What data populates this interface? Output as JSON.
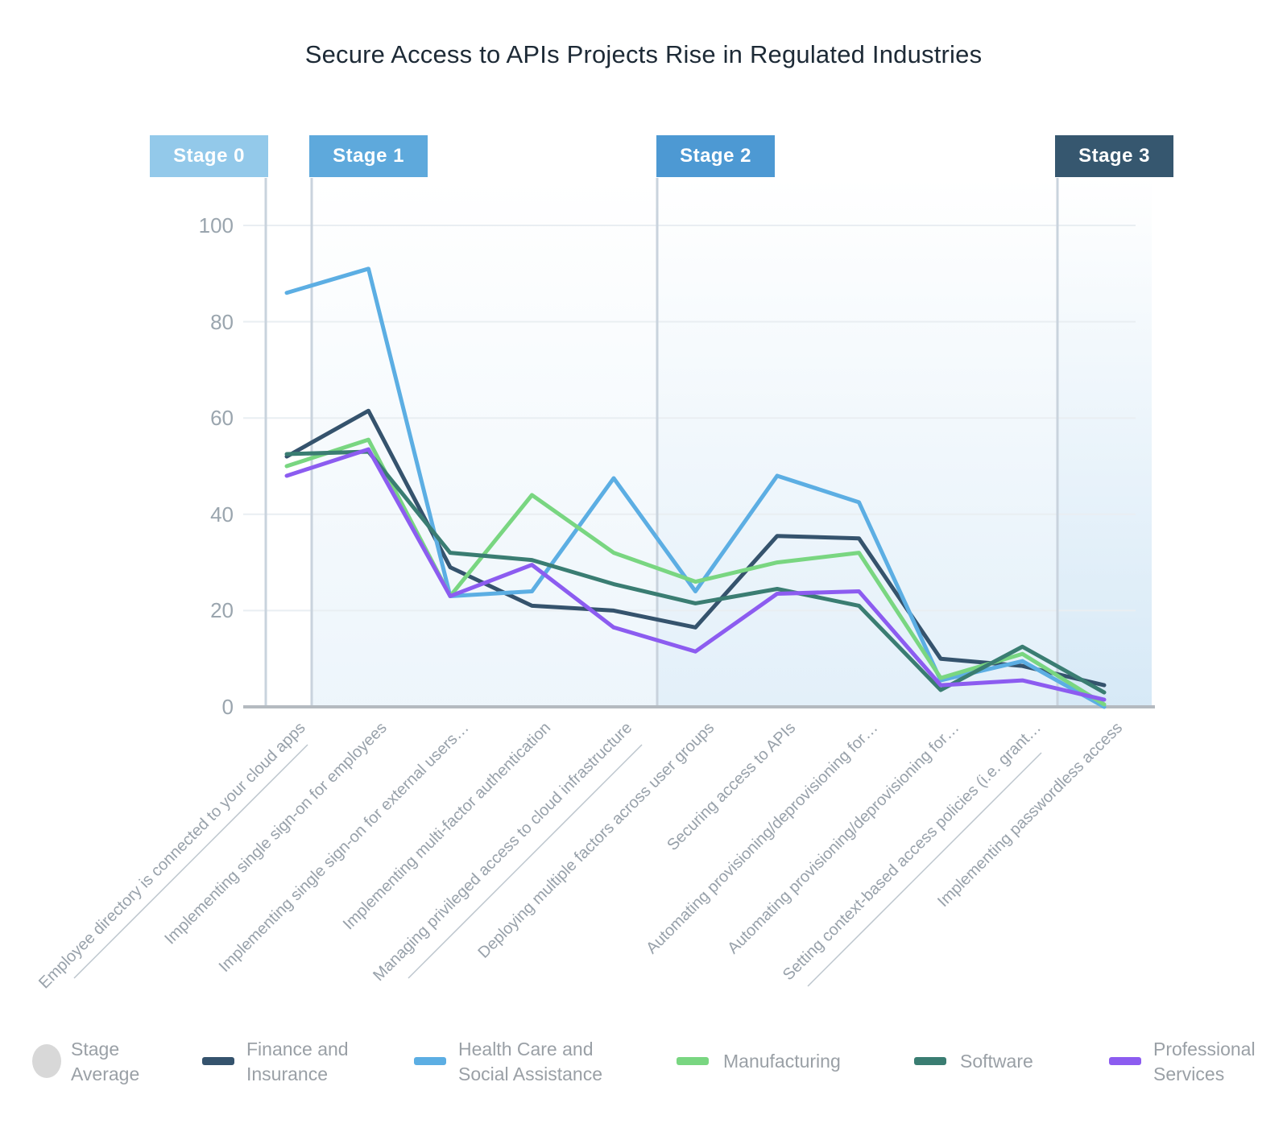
{
  "title": "Secure Access to APIs Projects Rise in Regulated Industries",
  "stages": [
    {
      "label": "Stage 0",
      "color": "#93c9ea"
    },
    {
      "label": "Stage 1",
      "color": "#5ea9dc"
    },
    {
      "label": "Stage 2",
      "color": "#4d99d3"
    },
    {
      "label": "Stage 3",
      "color": "#36576f"
    }
  ],
  "chart_data": {
    "type": "line",
    "title": "Secure Access to APIs Projects Rise in Regulated Industries",
    "categories": [
      "Employee directory is connected to your cloud apps",
      "Implementing single sign-on for employees",
      "Implementing single sign-on for external users…",
      "Implementing multi-factor authentication",
      "Managing privileged access to cloud infrastructure",
      "Deploying multiple factors across user groups",
      "Securing access to APIs",
      "Automating provisioning/deprovisioning for…",
      "Automating provisioning/deprovisioning for…",
      "Setting context-based access policies (i.e. grant…",
      "Implementing passwordless access"
    ],
    "series": [
      {
        "name": "Finance and Insurance",
        "color": "#35536d",
        "values": [
          52,
          61.5,
          29,
          21,
          20,
          16.5,
          35.5,
          35,
          10,
          8.5,
          4.5
        ]
      },
      {
        "name": "Health Care and Social Assistance",
        "color": "#5caee3",
        "values": [
          86,
          91,
          23,
          24,
          47.5,
          24,
          48,
          42.5,
          5.5,
          9.5,
          0
        ]
      },
      {
        "name": "Manufacturing",
        "color": "#79d681",
        "values": [
          50,
          55.5,
          23,
          44,
          32,
          26,
          30,
          32,
          6,
          11,
          0.5
        ]
      },
      {
        "name": "Software",
        "color": "#3a7d72",
        "values": [
          52.5,
          53,
          32,
          30.5,
          25.5,
          21.5,
          24.5,
          21,
          3.5,
          12.5,
          3
        ]
      },
      {
        "name": "Professional Services",
        "color": "#8c5cf0",
        "values": [
          48,
          53.5,
          23,
          29.5,
          16.5,
          11.5,
          23.5,
          24,
          4.5,
          5.5,
          1.5
        ]
      }
    ],
    "xlabel": "",
    "ylabel": "",
    "ylim": [
      0,
      100
    ],
    "yticks": [
      0,
      20,
      40,
      60,
      80,
      100
    ],
    "grid": true,
    "legend_position": "bottom",
    "stage_regions": [
      {
        "stage": "Stage 1",
        "tint": "#aed3ee",
        "max_alpha": 0.22
      },
      {
        "stage": "Stage 2",
        "tint": "#aed3ee",
        "max_alpha": 0.35
      },
      {
        "stage": "Stage 3",
        "tint": "#aed3ee",
        "max_alpha": 0.5
      }
    ]
  },
  "legend": {
    "items": [
      {
        "label": "Stage Average",
        "lines": [
          "Stage",
          "Average"
        ],
        "swatch": "circle",
        "color": "#d8d8d8"
      },
      {
        "label": "Finance and Insurance",
        "lines": [
          "Finance and",
          "Insurance"
        ],
        "swatch": "dash",
        "color": "#35536d"
      },
      {
        "label": "Health Care and Social Assistance",
        "lines": [
          "Health Care and",
          "Social Assistance"
        ],
        "swatch": "dash",
        "color": "#5caee3"
      },
      {
        "label": "Manufacturing",
        "lines": [
          "Manufacturing"
        ],
        "swatch": "dash",
        "color": "#79d681"
      },
      {
        "label": "Software",
        "lines": [
          "Software"
        ],
        "swatch": "dash",
        "color": "#3a7d72"
      },
      {
        "label": "Professional Services",
        "lines": [
          "Professional",
          "Services"
        ],
        "swatch": "dash",
        "color": "#8c5cf0"
      }
    ]
  }
}
